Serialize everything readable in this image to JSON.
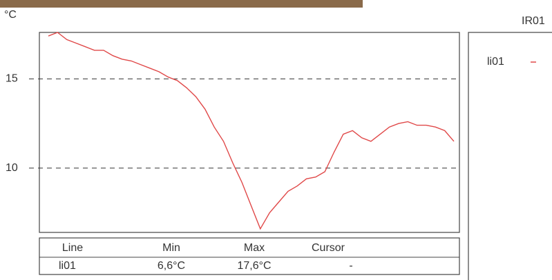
{
  "chart_data": {
    "type": "line",
    "y_label": "°C",
    "panel_title": "IR01",
    "series": [
      {
        "name": "li01",
        "color": "#e04848",
        "values": [
          17.4,
          17.6,
          17.2,
          17.0,
          16.8,
          16.6,
          16.6,
          16.3,
          16.1,
          16.0,
          15.8,
          15.6,
          15.4,
          15.1,
          14.9,
          14.5,
          14.0,
          13.3,
          12.3,
          11.5,
          10.3,
          9.2,
          7.9,
          6.6,
          7.5,
          8.1,
          8.7,
          9.0,
          9.4,
          9.5,
          9.8,
          10.9,
          11.9,
          12.1,
          11.7,
          11.5,
          11.9,
          12.3,
          12.5,
          12.6,
          12.4,
          12.4,
          12.3,
          12.1,
          11.5
        ]
      }
    ],
    "ylim": [
      6.4,
      17.6
    ],
    "yticks": [
      10,
      15
    ],
    "grid": true
  },
  "table": {
    "header": [
      "Line",
      "Min",
      "Max",
      "Cursor"
    ],
    "rows": [
      [
        "li01",
        "6,6°C",
        "17,6°C",
        "-"
      ]
    ]
  }
}
